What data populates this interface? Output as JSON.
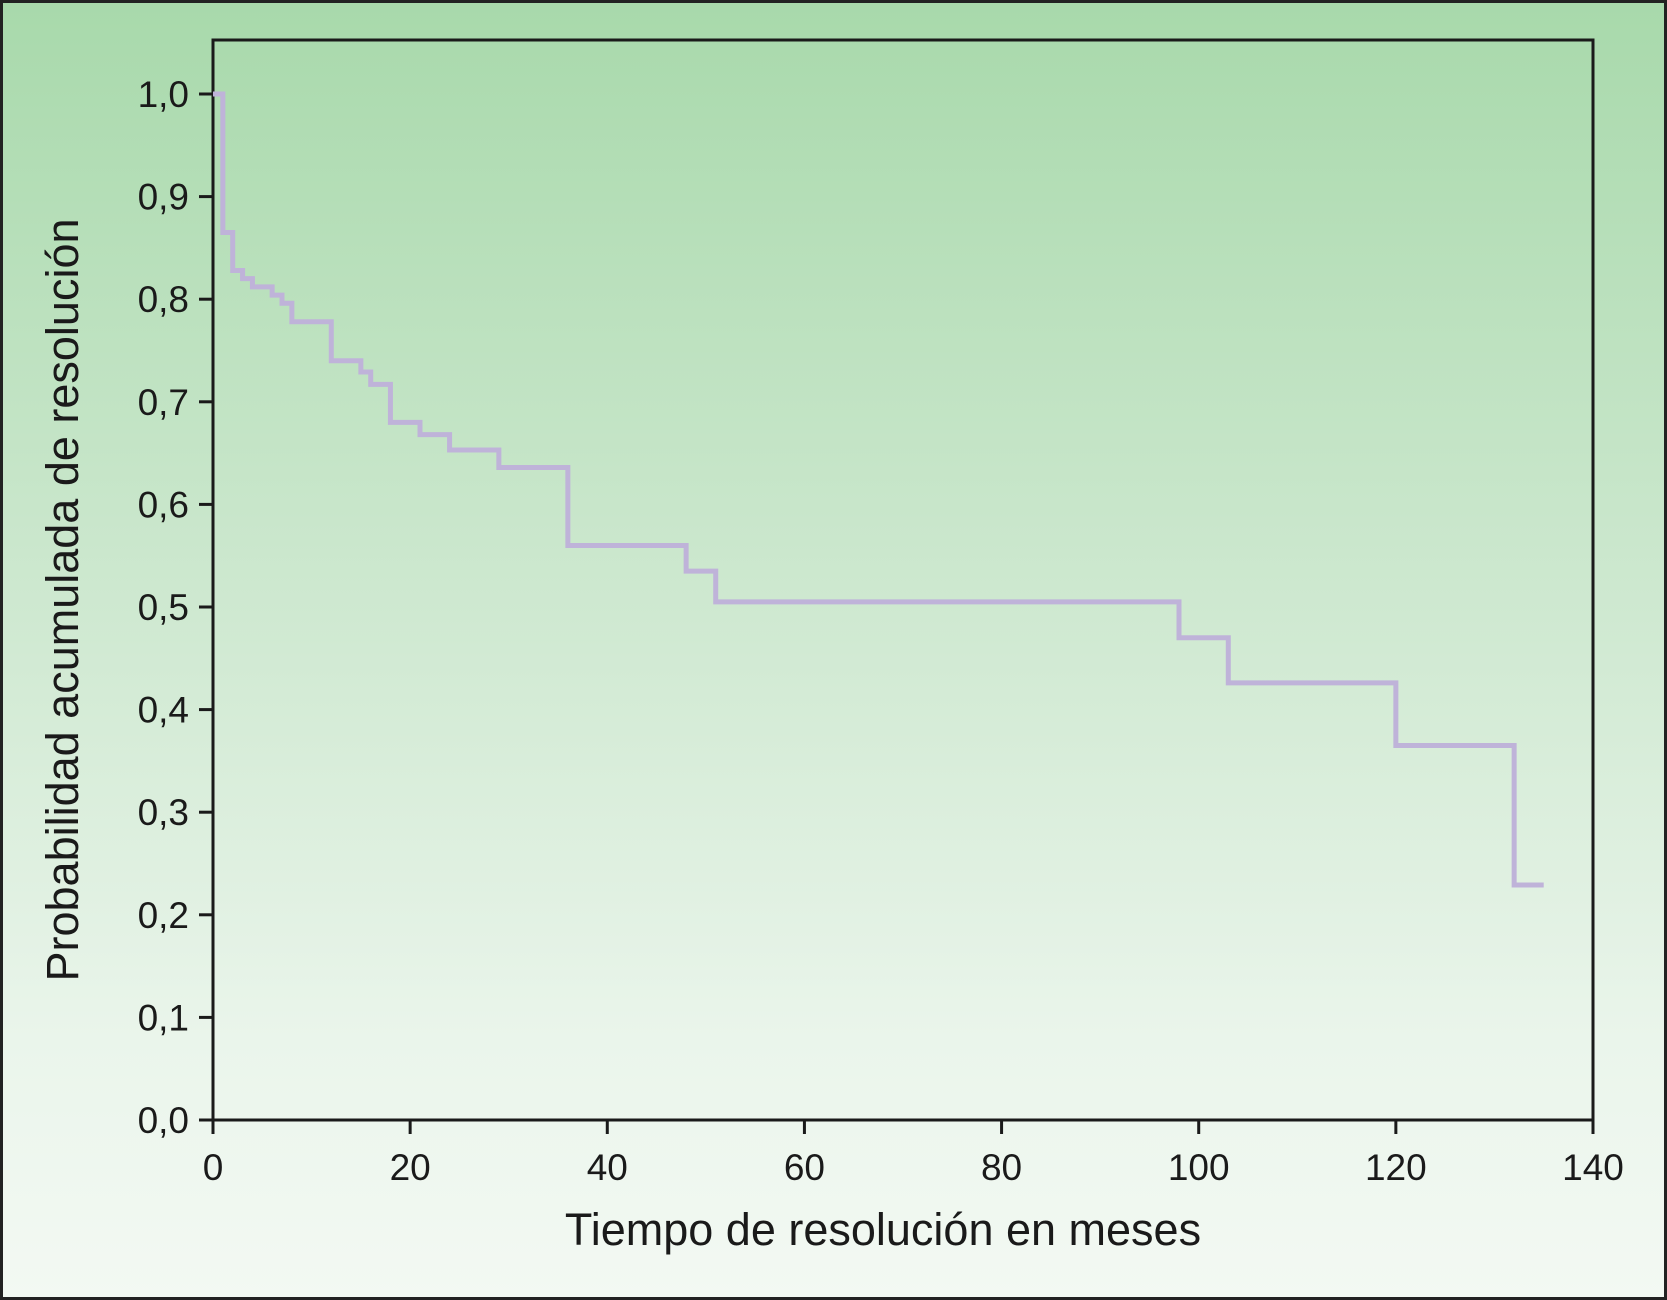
{
  "colors": {
    "line": "#bfb3d9",
    "axis": "#1a1a1a",
    "background_top": "#a8d9ab",
    "background_bottom": "#f3f9f3"
  },
  "chart_data": {
    "type": "line",
    "step": true,
    "title": "",
    "xlabel": "Tiempo de resolución en meses",
    "ylabel": "Probabilidad acumulada de resolución",
    "xlim": [
      0,
      140
    ],
    "ylim": [
      0,
      1
    ],
    "grid": false,
    "xticks": [
      0,
      20,
      40,
      60,
      80,
      100,
      120,
      140
    ],
    "xtick_labels": [
      "0",
      "20",
      "40",
      "60",
      "80",
      "100",
      "120",
      "140"
    ],
    "yticks": [
      0,
      0.1,
      0.2,
      0.3,
      0.4,
      0.5,
      0.6,
      0.7,
      0.8,
      0.9,
      1.0
    ],
    "ytick_labels": [
      "0,0",
      "0,1",
      "0,2",
      "0,3",
      "0,4",
      "0,5",
      "0,6",
      "0,7",
      "0,8",
      "0,9",
      "1,0"
    ],
    "series": [
      {
        "x": [
          0,
          1,
          2,
          3,
          4,
          6,
          7,
          8,
          12,
          15,
          16,
          18,
          21,
          24,
          29,
          36,
          48,
          51,
          98,
          103,
          120,
          132,
          135
        ],
        "y": [
          1.0,
          0.865,
          0.828,
          0.82,
          0.812,
          0.804,
          0.796,
          0.778,
          0.74,
          0.729,
          0.717,
          0.68,
          0.668,
          0.653,
          0.636,
          0.56,
          0.535,
          0.505,
          0.47,
          0.426,
          0.365,
          0.229,
          0.229
        ]
      }
    ]
  }
}
